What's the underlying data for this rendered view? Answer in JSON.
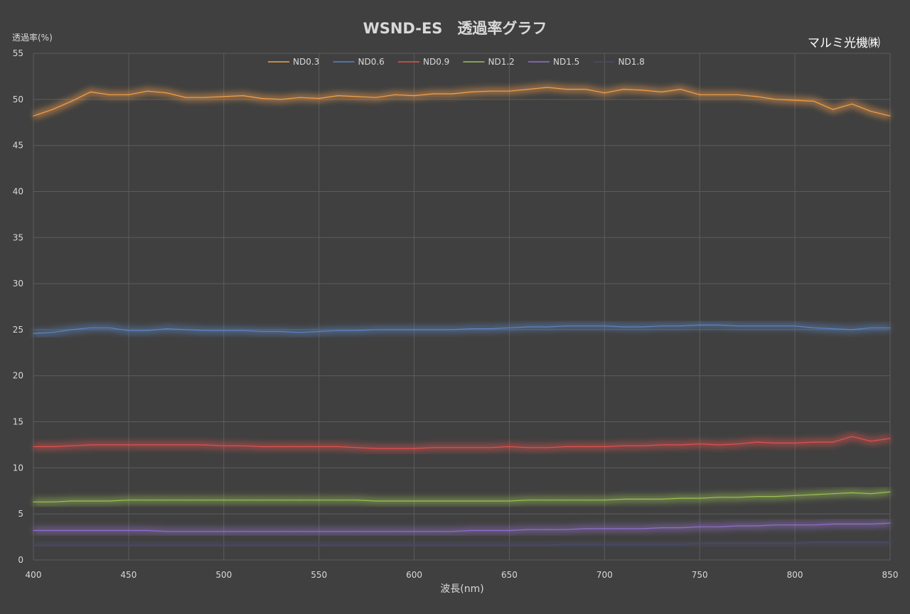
{
  "chart_data": {
    "type": "line",
    "title": "WSND-ES　透過率グラフ",
    "brand": "マルミ光機㈱",
    "xlabel": "波長(nm)",
    "ylabel": "透過率(%)",
    "xlim": [
      400,
      850
    ],
    "ylim": [
      0,
      55
    ],
    "xticks": [
      400,
      450,
      500,
      550,
      600,
      650,
      700,
      750,
      800,
      850
    ],
    "yticks": [
      0,
      5,
      10,
      15,
      20,
      25,
      30,
      35,
      40,
      45,
      50,
      55
    ],
    "grid": true,
    "legend_position": "top",
    "x": [
      400,
      410,
      420,
      430,
      440,
      450,
      460,
      470,
      480,
      490,
      500,
      510,
      520,
      530,
      540,
      550,
      560,
      570,
      580,
      590,
      600,
      610,
      620,
      630,
      640,
      650,
      660,
      670,
      680,
      690,
      700,
      710,
      720,
      730,
      740,
      750,
      760,
      770,
      780,
      790,
      800,
      810,
      820,
      830,
      840,
      850
    ],
    "series": [
      {
        "name": "ND0.3",
        "color": "#f4a04a",
        "values": [
          48.2,
          48.9,
          49.8,
          50.8,
          50.5,
          50.5,
          50.9,
          50.7,
          50.2,
          50.2,
          50.3,
          50.4,
          50.1,
          50.0,
          50.2,
          50.1,
          50.4,
          50.3,
          50.2,
          50.5,
          50.4,
          50.6,
          50.6,
          50.8,
          50.9,
          50.9,
          51.1,
          51.3,
          51.1,
          51.1,
          50.7,
          51.1,
          51.0,
          50.8,
          51.1,
          50.5,
          50.5,
          50.5,
          50.3,
          50.0,
          49.9,
          49.8,
          48.9,
          49.5,
          48.7,
          48.2
        ]
      },
      {
        "name": "ND0.6",
        "color": "#5b84c4",
        "values": [
          24.6,
          24.7,
          25.0,
          25.2,
          25.2,
          24.9,
          24.9,
          25.1,
          25.0,
          24.9,
          24.9,
          24.9,
          24.8,
          24.8,
          24.7,
          24.8,
          24.9,
          24.9,
          25.0,
          25.0,
          25.0,
          25.0,
          25.0,
          25.1,
          25.1,
          25.2,
          25.3,
          25.3,
          25.4,
          25.4,
          25.4,
          25.3,
          25.3,
          25.4,
          25.4,
          25.5,
          25.5,
          25.4,
          25.4,
          25.4,
          25.4,
          25.2,
          25.1,
          25.0,
          25.2,
          25.2
        ]
      },
      {
        "name": "ND0.9",
        "color": "#e0524d",
        "values": [
          12.3,
          12.3,
          12.4,
          12.5,
          12.5,
          12.5,
          12.5,
          12.5,
          12.5,
          12.5,
          12.4,
          12.4,
          12.3,
          12.3,
          12.3,
          12.3,
          12.3,
          12.2,
          12.1,
          12.1,
          12.1,
          12.2,
          12.2,
          12.2,
          12.2,
          12.3,
          12.2,
          12.2,
          12.3,
          12.3,
          12.3,
          12.4,
          12.4,
          12.5,
          12.5,
          12.6,
          12.5,
          12.6,
          12.8,
          12.7,
          12.7,
          12.8,
          12.8,
          13.4,
          12.9,
          13.2
        ]
      },
      {
        "name": "ND1.2",
        "color": "#9bc255",
        "values": [
          6.3,
          6.3,
          6.4,
          6.4,
          6.4,
          6.5,
          6.5,
          6.5,
          6.5,
          6.5,
          6.5,
          6.5,
          6.5,
          6.5,
          6.5,
          6.5,
          6.5,
          6.5,
          6.4,
          6.4,
          6.4,
          6.4,
          6.4,
          6.4,
          6.4,
          6.4,
          6.5,
          6.5,
          6.5,
          6.5,
          6.5,
          6.6,
          6.6,
          6.6,
          6.7,
          6.7,
          6.8,
          6.8,
          6.9,
          6.9,
          7.0,
          7.1,
          7.2,
          7.3,
          7.2,
          7.4
        ]
      },
      {
        "name": "ND1.5",
        "color": "#9270c8",
        "values": [
          3.2,
          3.2,
          3.2,
          3.2,
          3.2,
          3.2,
          3.2,
          3.1,
          3.1,
          3.1,
          3.1,
          3.1,
          3.1,
          3.1,
          3.1,
          3.1,
          3.1,
          3.1,
          3.1,
          3.1,
          3.1,
          3.1,
          3.1,
          3.2,
          3.2,
          3.2,
          3.3,
          3.3,
          3.3,
          3.4,
          3.4,
          3.4,
          3.4,
          3.5,
          3.5,
          3.6,
          3.6,
          3.7,
          3.7,
          3.8,
          3.8,
          3.8,
          3.9,
          3.9,
          3.9,
          4.0
        ]
      },
      {
        "name": "ND1.8",
        "color": "#4a4a6a",
        "values": [
          1.6,
          1.6,
          1.6,
          1.6,
          1.6,
          1.6,
          1.6,
          1.6,
          1.6,
          1.6,
          1.6,
          1.6,
          1.6,
          1.6,
          1.6,
          1.6,
          1.6,
          1.6,
          1.6,
          1.6,
          1.6,
          1.6,
          1.6,
          1.6,
          1.6,
          1.6,
          1.6,
          1.6,
          1.7,
          1.7,
          1.7,
          1.7,
          1.7,
          1.7,
          1.7,
          1.8,
          1.8,
          1.8,
          1.8,
          1.8,
          1.8,
          1.9,
          1.9,
          1.9,
          1.9,
          1.9
        ]
      }
    ]
  }
}
